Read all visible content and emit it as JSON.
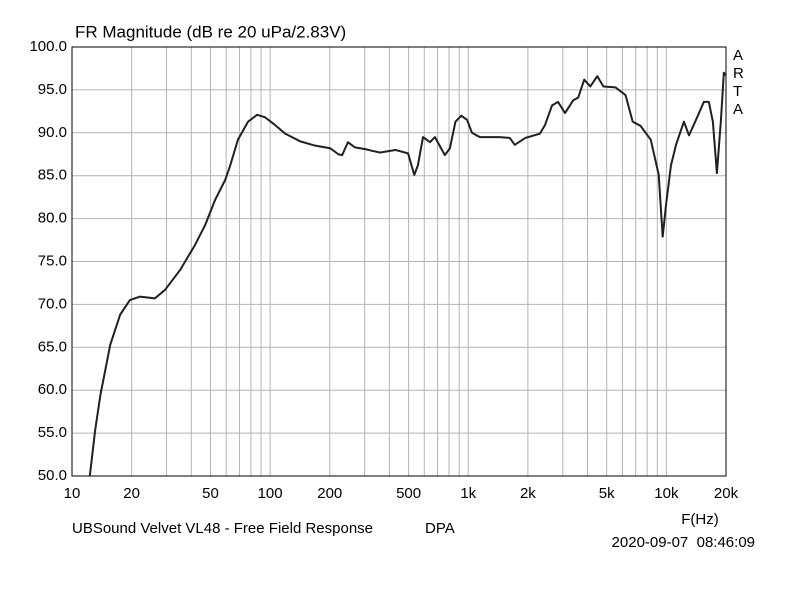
{
  "chart_data": {
    "type": "line",
    "title": "FR Magnitude (dB re 20 uPa/2.83V)",
    "side_label": "ARTA",
    "x_label": "F(Hz)",
    "footer_left": "UBSound Velvet VL48 - Free Field Response",
    "footer_mid": "DPA",
    "footer_right": "2020-09-07  08:46:09",
    "xscale": "log",
    "grid": true,
    "color": "#202020",
    "xlim": [
      10,
      20000
    ],
    "ylim": [
      50,
      100
    ],
    "xticks": [
      10,
      20,
      50,
      100,
      200,
      500,
      {
        "value": 1000,
        "label": "1k"
      },
      {
        "value": 2000,
        "label": "2k"
      },
      {
        "value": 5000,
        "label": "5k"
      },
      {
        "value": 10000,
        "label": "10k"
      },
      {
        "value": 20000,
        "label": "20k"
      }
    ],
    "xminor": [
      30,
      40,
      60,
      70,
      80,
      90,
      300,
      400,
      600,
      700,
      800,
      900,
      3000,
      4000,
      6000,
      7000,
      8000,
      9000
    ],
    "yticks": [
      {
        "value": 50,
        "label": "50.0"
      },
      {
        "value": 55,
        "label": "55.0"
      },
      {
        "value": 60,
        "label": "60.0"
      },
      {
        "value": 65,
        "label": "65.0"
      },
      {
        "value": 70,
        "label": "70.0"
      },
      {
        "value": 75,
        "label": "75.0"
      },
      {
        "value": 80,
        "label": "80.0"
      },
      {
        "value": 85,
        "label": "85.0"
      },
      {
        "value": 90,
        "label": "90.0"
      },
      {
        "value": 95,
        "label": "95.0"
      },
      {
        "value": 100,
        "label": "100.0"
      }
    ],
    "x": [
      12.3,
      13.1,
      13.9,
      15.6,
      17.5,
      19.6,
      22,
      26.2,
      29.5,
      35.1,
      41.7,
      46.9,
      52.8,
      59.3,
      62.9,
      68.8,
      77.4,
      86,
      94.4,
      106,
      119,
      142,
      169,
      201,
      221,
      231,
      247,
      268,
      302,
      327,
      359,
      429,
      497,
      534,
      557,
      591,
      641,
      679,
      762,
      808,
      862,
      922,
      987,
      1044,
      1144,
      1443,
      1620,
      1718,
      1941,
      2300,
      2440,
      2650,
      2840,
      3080,
      3390,
      3590,
      3850,
      4130,
      4480,
      4810,
      5530,
      6220,
      6760,
      7410,
      8340,
      9150,
      9580,
      9960,
      10550,
      11190,
      12260,
      13010,
      14110,
      15460,
      16380,
      17170,
      17990,
      18860,
      19500,
      20000
    ],
    "values": [
      50,
      55.4,
      59.4,
      65.3,
      68.8,
      70.5,
      70.9,
      70.7,
      71.7,
      74,
      76.9,
      79.2,
      82.2,
      84.5,
      86.2,
      89.2,
      91.3,
      92.1,
      91.8,
      90.9,
      89.9,
      89,
      88.5,
      88.2,
      87.5,
      87.4,
      88.9,
      88.3,
      88.1,
      87.9,
      87.7,
      88,
      87.6,
      85.1,
      86.2,
      89.5,
      88.9,
      89.5,
      87.4,
      88.2,
      91.3,
      92,
      91.5,
      90,
      89.5,
      89.5,
      89.4,
      88.6,
      89.4,
      89.9,
      90.9,
      93.2,
      93.6,
      92.3,
      93.8,
      94.1,
      96.2,
      95.4,
      96.6,
      95.4,
      95.3,
      94.4,
      91.3,
      90.8,
      89.2,
      85.1,
      77.9,
      81.6,
      86.2,
      88.6,
      91.3,
      89.7,
      91.5,
      93.6,
      93.6,
      91.3,
      85.3,
      91.5,
      97,
      96.7
    ]
  }
}
